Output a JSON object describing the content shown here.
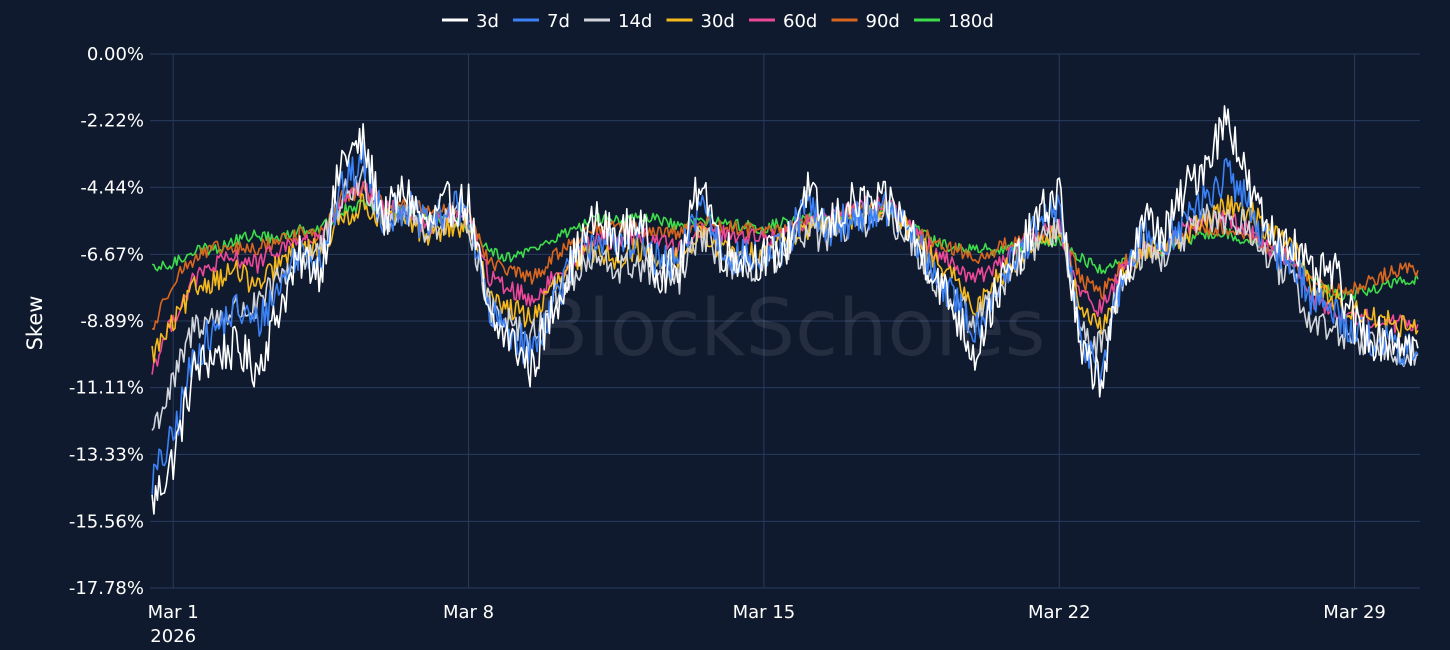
{
  "chart_data": {
    "type": "line",
    "title": "",
    "xlabel": "",
    "ylabel": "Skew",
    "watermark": "BlockScholes",
    "ylim": [
      -0.1778,
      0.0
    ],
    "y_ticks": [
      "0.00%",
      "-2.22%",
      "-4.44%",
      "-6.67%",
      "-8.89%",
      "-11.11%",
      "-13.33%",
      "-15.56%",
      "-17.78%"
    ],
    "y_tick_values": [
      0.0,
      -0.0222,
      -0.0444,
      -0.0667,
      -0.0889,
      -0.1111,
      -0.1333,
      -0.1556,
      -0.1778
    ],
    "x_ticks": [
      {
        "day": 1,
        "label": "Mar 1",
        "sublabel": "2026"
      },
      {
        "day": 8,
        "label": "Mar 8",
        "sublabel": ""
      },
      {
        "day": 15,
        "label": "Mar 15",
        "sublabel": ""
      },
      {
        "day": 22,
        "label": "Mar 22",
        "sublabel": ""
      },
      {
        "day": 29,
        "label": "Mar 29",
        "sublabel": ""
      }
    ],
    "xlim": [
      0.45,
      30.55
    ],
    "grid": true,
    "legend_position": "top-center",
    "x_unit": "day of March 2026",
    "x": [
      0.5,
      1,
      1.5,
      2,
      2.5,
      3,
      3.5,
      4,
      4.5,
      5,
      5.5,
      6,
      6.5,
      7,
      7.5,
      8,
      8.5,
      9,
      9.5,
      10,
      10.5,
      11,
      11.5,
      12,
      12.5,
      13,
      13.5,
      14,
      14.5,
      15,
      15.5,
      16,
      16.5,
      17,
      17.5,
      18,
      18.5,
      19,
      19.5,
      20,
      20.5,
      21,
      21.5,
      22,
      22.5,
      23,
      23.5,
      24,
      24.5,
      25,
      25.5,
      26,
      26.5,
      27,
      27.5,
      28,
      28.5,
      29,
      29.5,
      30,
      30.5
    ],
    "series": [
      {
        "name": "3d",
        "color": "#ffffff",
        "values": [
          -0.15,
          -0.135,
          -0.105,
          -0.1,
          -0.098,
          -0.105,
          -0.085,
          -0.068,
          -0.072,
          -0.035,
          -0.03,
          -0.055,
          -0.045,
          -0.058,
          -0.05,
          -0.05,
          -0.09,
          -0.095,
          -0.105,
          -0.085,
          -0.068,
          -0.055,
          -0.062,
          -0.055,
          -0.072,
          -0.072,
          -0.04,
          -0.065,
          -0.068,
          -0.068,
          -0.065,
          -0.045,
          -0.058,
          -0.05,
          -0.05,
          -0.05,
          -0.06,
          -0.072,
          -0.085,
          -0.1,
          -0.08,
          -0.068,
          -0.055,
          -0.045,
          -0.1,
          -0.108,
          -0.075,
          -0.055,
          -0.06,
          -0.045,
          -0.035,
          -0.02,
          -0.045,
          -0.06,
          -0.062,
          -0.075,
          -0.072,
          -0.09,
          -0.095,
          -0.095,
          -0.098
        ]
      },
      {
        "name": "7d",
        "color": "#3b82f6",
        "values": [
          -0.142,
          -0.128,
          -0.1,
          -0.092,
          -0.085,
          -0.09,
          -0.078,
          -0.065,
          -0.068,
          -0.045,
          -0.035,
          -0.055,
          -0.05,
          -0.058,
          -0.052,
          -0.052,
          -0.088,
          -0.092,
          -0.1,
          -0.082,
          -0.07,
          -0.06,
          -0.065,
          -0.06,
          -0.07,
          -0.07,
          -0.048,
          -0.065,
          -0.068,
          -0.068,
          -0.065,
          -0.05,
          -0.058,
          -0.055,
          -0.052,
          -0.052,
          -0.06,
          -0.072,
          -0.082,
          -0.092,
          -0.078,
          -0.068,
          -0.058,
          -0.05,
          -0.095,
          -0.105,
          -0.075,
          -0.06,
          -0.062,
          -0.055,
          -0.048,
          -0.04,
          -0.05,
          -0.065,
          -0.068,
          -0.082,
          -0.085,
          -0.092,
          -0.095,
          -0.098,
          -0.1
        ]
      },
      {
        "name": "14d",
        "color": "#d1d5db",
        "values": [
          -0.125,
          -0.11,
          -0.09,
          -0.088,
          -0.085,
          -0.085,
          -0.075,
          -0.068,
          -0.065,
          -0.048,
          -0.042,
          -0.055,
          -0.052,
          -0.058,
          -0.055,
          -0.055,
          -0.085,
          -0.088,
          -0.095,
          -0.08,
          -0.075,
          -0.068,
          -0.072,
          -0.07,
          -0.075,
          -0.075,
          -0.06,
          -0.068,
          -0.072,
          -0.07,
          -0.068,
          -0.058,
          -0.062,
          -0.058,
          -0.055,
          -0.055,
          -0.062,
          -0.075,
          -0.082,
          -0.09,
          -0.078,
          -0.07,
          -0.062,
          -0.058,
          -0.092,
          -0.098,
          -0.075,
          -0.065,
          -0.068,
          -0.06,
          -0.055,
          -0.055,
          -0.058,
          -0.07,
          -0.075,
          -0.09,
          -0.092,
          -0.095,
          -0.095,
          -0.098,
          -0.1
        ]
      },
      {
        "name": "30d",
        "color": "#f5b91e",
        "values": [
          -0.1,
          -0.09,
          -0.078,
          -0.075,
          -0.072,
          -0.078,
          -0.07,
          -0.065,
          -0.065,
          -0.055,
          -0.05,
          -0.055,
          -0.055,
          -0.06,
          -0.058,
          -0.058,
          -0.08,
          -0.085,
          -0.088,
          -0.078,
          -0.07,
          -0.065,
          -0.068,
          -0.065,
          -0.068,
          -0.068,
          -0.06,
          -0.065,
          -0.068,
          -0.065,
          -0.062,
          -0.058,
          -0.058,
          -0.055,
          -0.052,
          -0.052,
          -0.06,
          -0.068,
          -0.075,
          -0.085,
          -0.075,
          -0.068,
          -0.062,
          -0.058,
          -0.085,
          -0.092,
          -0.075,
          -0.065,
          -0.065,
          -0.06,
          -0.055,
          -0.05,
          -0.052,
          -0.06,
          -0.062,
          -0.078,
          -0.082,
          -0.085,
          -0.088,
          -0.09,
          -0.092
        ]
      },
      {
        "name": "60d",
        "color": "#ec4899",
        "values": [
          -0.105,
          -0.088,
          -0.075,
          -0.07,
          -0.068,
          -0.07,
          -0.065,
          -0.062,
          -0.062,
          -0.05,
          -0.045,
          -0.052,
          -0.052,
          -0.058,
          -0.055,
          -0.055,
          -0.075,
          -0.078,
          -0.082,
          -0.075,
          -0.068,
          -0.062,
          -0.062,
          -0.06,
          -0.062,
          -0.065,
          -0.058,
          -0.06,
          -0.06,
          -0.062,
          -0.06,
          -0.055,
          -0.055,
          -0.052,
          -0.05,
          -0.05,
          -0.058,
          -0.065,
          -0.07,
          -0.075,
          -0.07,
          -0.065,
          -0.06,
          -0.058,
          -0.08,
          -0.085,
          -0.072,
          -0.065,
          -0.065,
          -0.058,
          -0.055,
          -0.055,
          -0.058,
          -0.065,
          -0.068,
          -0.082,
          -0.085,
          -0.088,
          -0.088,
          -0.09,
          -0.09
        ]
      },
      {
        "name": "90d",
        "color": "#d9661f",
        "values": [
          -0.092,
          -0.075,
          -0.068,
          -0.065,
          -0.065,
          -0.065,
          -0.062,
          -0.06,
          -0.06,
          -0.048,
          -0.045,
          -0.05,
          -0.05,
          -0.052,
          -0.052,
          -0.052,
          -0.07,
          -0.072,
          -0.075,
          -0.068,
          -0.062,
          -0.058,
          -0.058,
          -0.058,
          -0.06,
          -0.06,
          -0.055,
          -0.058,
          -0.058,
          -0.06,
          -0.058,
          -0.055,
          -0.055,
          -0.052,
          -0.052,
          -0.052,
          -0.058,
          -0.062,
          -0.065,
          -0.068,
          -0.065,
          -0.062,
          -0.06,
          -0.058,
          -0.075,
          -0.08,
          -0.07,
          -0.065,
          -0.065,
          -0.06,
          -0.058,
          -0.058,
          -0.06,
          -0.065,
          -0.068,
          -0.075,
          -0.078,
          -0.078,
          -0.075,
          -0.072,
          -0.072
        ]
      },
      {
        "name": "180d",
        "color": "#3ddc4a",
        "values": [
          -0.072,
          -0.07,
          -0.065,
          -0.065,
          -0.062,
          -0.06,
          -0.062,
          -0.058,
          -0.058,
          -0.052,
          -0.05,
          -0.052,
          -0.052,
          -0.055,
          -0.055,
          -0.058,
          -0.065,
          -0.068,
          -0.065,
          -0.062,
          -0.058,
          -0.055,
          -0.055,
          -0.055,
          -0.055,
          -0.058,
          -0.055,
          -0.056,
          -0.057,
          -0.058,
          -0.056,
          -0.055,
          -0.055,
          -0.054,
          -0.053,
          -0.052,
          -0.058,
          -0.062,
          -0.065,
          -0.065,
          -0.065,
          -0.064,
          -0.063,
          -0.062,
          -0.068,
          -0.072,
          -0.068,
          -0.066,
          -0.065,
          -0.062,
          -0.06,
          -0.06,
          -0.062,
          -0.065,
          -0.068,
          -0.075,
          -0.08,
          -0.08,
          -0.078,
          -0.076,
          -0.075
        ]
      }
    ]
  }
}
